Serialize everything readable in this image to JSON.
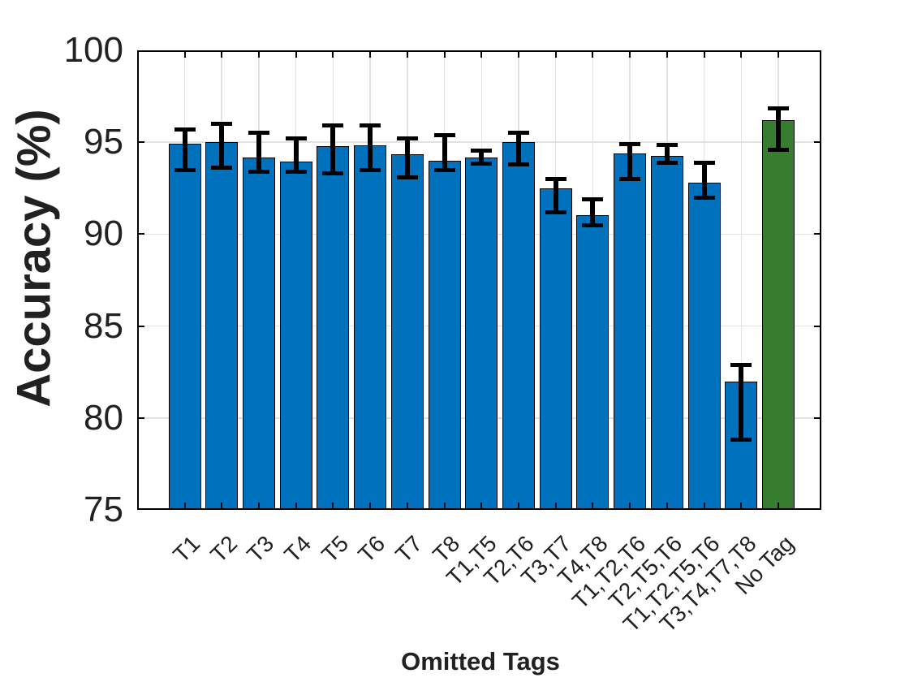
{
  "chart_data": {
    "type": "bar",
    "title": "",
    "xlabel": "Omitted Tags",
    "ylabel": "Accuracy (%)",
    "ylim": [
      75,
      100
    ],
    "yticks": [
      75,
      80,
      85,
      90,
      95,
      100
    ],
    "grid": true,
    "legend": "none",
    "categories": [
      "T1",
      "T2",
      "T3",
      "T4",
      "T5",
      "T6",
      "T7",
      "T8",
      "T1,T5",
      "T2,T6",
      "T3,T7",
      "T4,T8",
      "T1,T2,T6",
      "T2,T5,T6",
      "T1,T2,T5,T6",
      "T3,T4,T7,T8",
      "No Tag"
    ],
    "values": [
      94.9,
      95.0,
      94.15,
      93.95,
      94.8,
      94.85,
      94.35,
      94.0,
      94.15,
      95.0,
      92.5,
      91.05,
      94.4,
      94.25,
      92.8,
      82.0,
      96.2
    ],
    "error_lo": [
      93.5,
      93.6,
      93.4,
      93.4,
      93.3,
      93.5,
      93.1,
      93.5,
      93.85,
      93.8,
      91.2,
      90.5,
      93.0,
      93.9,
      92.0,
      78.8,
      94.6
    ],
    "error_hi": [
      95.7,
      96.0,
      95.5,
      95.2,
      95.9,
      95.9,
      95.2,
      95.4,
      94.55,
      95.5,
      93.0,
      91.9,
      94.9,
      94.85,
      93.9,
      82.9,
      96.85
    ],
    "colors": {
      "bar_default": "#0072BD",
      "bar_no_tag": "#377D2F",
      "bar_edge": "#000000",
      "error_bar": "#000000",
      "grid": "#e2e2e2",
      "text": "#212121"
    }
  }
}
